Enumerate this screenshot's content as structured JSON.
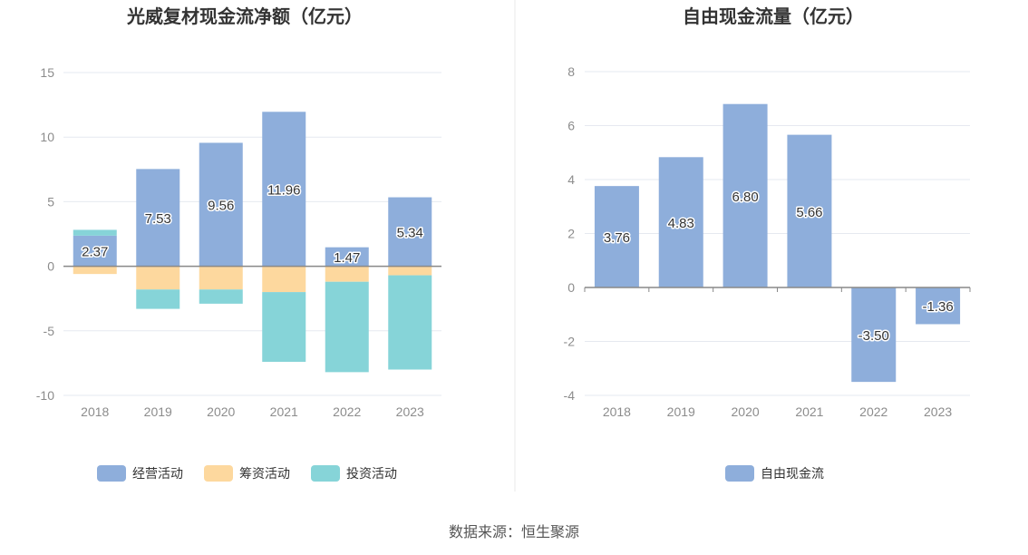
{
  "chart_data": [
    {
      "type": "bar",
      "stacked": true,
      "title": "光威复材现金流净额（亿元）",
      "categories": [
        "2018",
        "2019",
        "2020",
        "2021",
        "2022",
        "2023"
      ],
      "ylim": [
        -10,
        15
      ],
      "yticks": [
        "15",
        "10",
        "5",
        "0",
        "-5",
        "-10"
      ],
      "ytick_values": [
        15,
        10,
        5,
        0,
        -5,
        -10
      ],
      "grid": true,
      "legend_position": "bottom",
      "series": [
        {
          "name": "经营活动",
          "color": "#8eaedb",
          "values": [
            2.37,
            7.53,
            9.56,
            11.96,
            1.47,
            5.34
          ],
          "labels": [
            "2.37",
            "7.53",
            "9.56",
            "11.96",
            "1.47",
            "5.34"
          ]
        },
        {
          "name": "筹资活动",
          "color": "#fdd89e",
          "values": [
            -0.6,
            -1.8,
            -1.8,
            -2.0,
            -1.2,
            -0.7
          ]
        },
        {
          "name": "投资活动",
          "color": "#86d4d8",
          "values": [
            0.45,
            -1.5,
            -1.1,
            -5.4,
            -7.0,
            -7.3
          ]
        }
      ]
    },
    {
      "type": "bar",
      "title": "自由现金流量（亿元）",
      "categories": [
        "2018",
        "2019",
        "2020",
        "2021",
        "2022",
        "2023"
      ],
      "ylim": [
        -4,
        8
      ],
      "yticks": [
        "8",
        "6",
        "4",
        "2",
        "0",
        "-2",
        "-4"
      ],
      "ytick_values": [
        8,
        6,
        4,
        2,
        0,
        -2,
        -4
      ],
      "grid": true,
      "legend_position": "bottom",
      "series": [
        {
          "name": "自由现金流",
          "color": "#8eaedb",
          "values": [
            3.76,
            4.83,
            6.8,
            5.66,
            -3.5,
            -1.36
          ],
          "labels": [
            "3.76",
            "4.83",
            "6.80",
            "5.66",
            "-3.50",
            "-1.36"
          ]
        }
      ]
    }
  ],
  "footer": {
    "source": "数据来源：恒生聚源"
  },
  "colors": {
    "grid": "#e6e9f0",
    "axis": "#888888",
    "divider": "#e8e8e8"
  }
}
